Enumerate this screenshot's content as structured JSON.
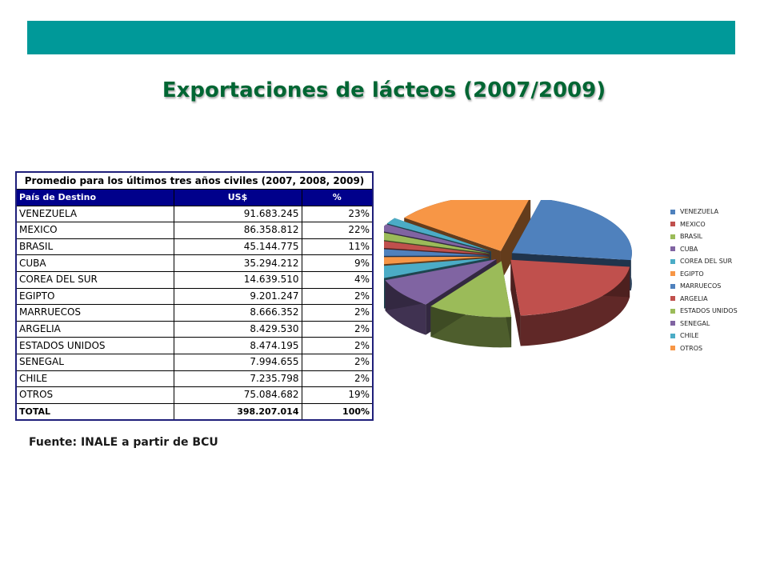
{
  "header": {
    "bar_color": "#009999",
    "title": "Exportaciones de lácteos (2007/2009)",
    "title_color": "#006633"
  },
  "table": {
    "caption": "Promedio para los últimos tres años civiles (2007, 2008, 2009)",
    "columns": [
      "País de Destino",
      "US$",
      "%"
    ],
    "rows": [
      {
        "country": "VENEZUELA",
        "usd": "91.683.245",
        "pct": "23%"
      },
      {
        "country": "MEXICO",
        "usd": "86.358.812",
        "pct": "22%"
      },
      {
        "country": "BRASIL",
        "usd": "45.144.775",
        "pct": "11%"
      },
      {
        "country": "CUBA",
        "usd": "35.294.212",
        "pct": "9%"
      },
      {
        "country": "COREA DEL SUR",
        "usd": "14.639.510",
        "pct": "4%"
      },
      {
        "country": "EGIPTO",
        "usd": "9.201.247",
        "pct": "2%"
      },
      {
        "country": "MARRUECOS",
        "usd": "8.666.352",
        "pct": "2%"
      },
      {
        "country": "ARGELIA",
        "usd": "8.429.530",
        "pct": "2%"
      },
      {
        "country": "ESTADOS UNIDOS",
        "usd": "8.474.195",
        "pct": "2%"
      },
      {
        "country": "SENEGAL",
        "usd": "7.994.655",
        "pct": "2%"
      },
      {
        "country": "CHILE",
        "usd": "7.235.798",
        "pct": "2%"
      },
      {
        "country": "OTROS",
        "usd": "75.084.682",
        "pct": "19%"
      }
    ],
    "total": {
      "country": "TOTAL",
      "usd": "398.207.014",
      "pct": "100%"
    }
  },
  "source": "Fuente: INALE a partir de BCU",
  "chart_data": {
    "type": "pie",
    "style": "3d-exploded",
    "categories": [
      "VENEZUELA",
      "MEXICO",
      "BRASIL",
      "CUBA",
      "COREA DEL SUR",
      "EGIPTO",
      "MARRUECOS",
      "ARGELIA",
      "ESTADOS UNIDOS",
      "SENEGAL",
      "CHILE",
      "OTROS"
    ],
    "values": [
      91683245,
      86358812,
      45144775,
      35294212,
      14639510,
      9201247,
      8666352,
      8429530,
      8474195,
      7994655,
      7235798,
      75084682
    ],
    "colors": [
      "#4f81bd",
      "#c0504d",
      "#9bbb59",
      "#8064a2",
      "#4bacc6",
      "#f79646",
      "#4f81bd",
      "#c0504d",
      "#9bbb59",
      "#8064a2",
      "#4bacc6",
      "#f79646"
    ],
    "legend_position": "right"
  }
}
